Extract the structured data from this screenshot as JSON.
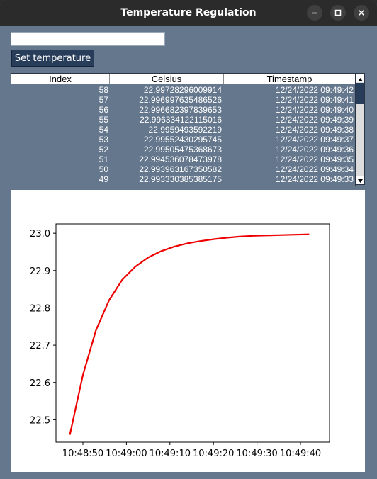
{
  "window": {
    "title": "Temperature Regulation"
  },
  "controls": {
    "temperature_input_value": "",
    "set_button_label": "Set temperature"
  },
  "table": {
    "columns": [
      "Index",
      "Celsius",
      "Timestamp"
    ],
    "rows": [
      {
        "index": "58",
        "celsius": "22.99728296009914",
        "timestamp": "12/24/2022 09:49:42"
      },
      {
        "index": "57",
        "celsius": "22.996997635486526",
        "timestamp": "12/24/2022 09:49:41"
      },
      {
        "index": "56",
        "celsius": "22.996682397839653",
        "timestamp": "12/24/2022 09:49:40"
      },
      {
        "index": "55",
        "celsius": "22.996334122115016",
        "timestamp": "12/24/2022 09:49:39"
      },
      {
        "index": "54",
        "celsius": "22.9959493592219",
        "timestamp": "12/24/2022 09:49:38"
      },
      {
        "index": "53",
        "celsius": "22.99552430295745",
        "timestamp": "12/24/2022 09:49:37"
      },
      {
        "index": "52",
        "celsius": "22.99505475368673",
        "timestamp": "12/24/2022 09:49:36"
      },
      {
        "index": "51",
        "celsius": "22.994536078473978",
        "timestamp": "12/24/2022 09:49:35"
      },
      {
        "index": "50",
        "celsius": "22.993963167350582",
        "timestamp": "12/24/2022 09:49:34"
      },
      {
        "index": "49",
        "celsius": "22.993330385385175",
        "timestamp": "12/24/2022 09:49:33"
      }
    ]
  },
  "chart_data": {
    "type": "line",
    "title": "",
    "xlabel": "",
    "ylabel": "",
    "x_tick_labels": [
      "10:48:50",
      "10:49:00",
      "10:49:10",
      "10:49:20",
      "10:49:30",
      "10:49:40"
    ],
    "y_tick_labels": [
      "22.5",
      "22.6",
      "22.7",
      "22.8",
      "22.9",
      "23.0"
    ],
    "ylim": [
      22.44,
      23.025
    ],
    "grid": false,
    "series": [
      {
        "color": "#ee0000",
        "x": [
          "10:48:47",
          "10:48:50",
          "10:48:53",
          "10:48:56",
          "10:48:59",
          "10:49:02",
          "10:49:05",
          "10:49:08",
          "10:49:11",
          "10:49:14",
          "10:49:17",
          "10:49:20",
          "10:49:23",
          "10:49:26",
          "10:49:29",
          "10:49:32",
          "10:49:35",
          "10:49:38",
          "10:49:42"
        ],
        "y": [
          22.46,
          22.62,
          22.74,
          22.82,
          22.875,
          22.91,
          22.935,
          22.952,
          22.964,
          22.973,
          22.979,
          22.984,
          22.988,
          22.991,
          22.993,
          22.994,
          22.995,
          22.996,
          22.997
        ]
      }
    ]
  },
  "colors": {
    "window_bg": "#64778d",
    "titlebar_bg": "#2b2b2b",
    "button_bg": "#283d5a",
    "line": "#ee0000"
  }
}
